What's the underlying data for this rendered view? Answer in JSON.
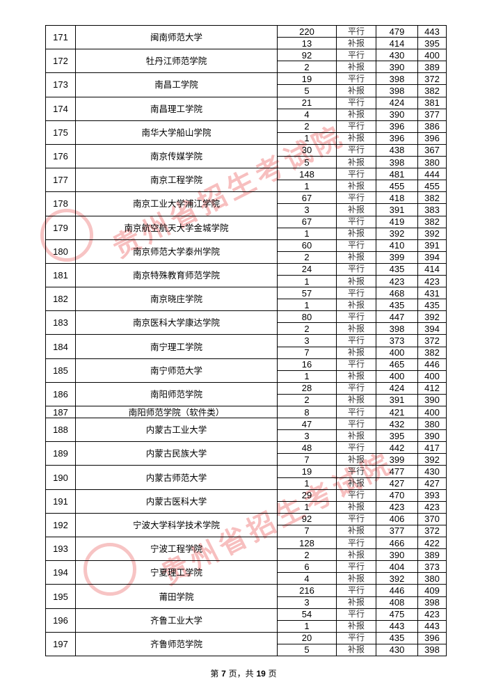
{
  "watermark": "贵州省招生考试院",
  "schools": [
    {
      "no": "171",
      "name": "闽南师范大学",
      "rows": [
        [
          "220",
          "平行",
          "479",
          "443"
        ],
        [
          "13",
          "补报",
          "414",
          "395"
        ]
      ]
    },
    {
      "no": "172",
      "name": "牡丹江师范学院",
      "rows": [
        [
          "92",
          "平行",
          "430",
          "400"
        ],
        [
          "2",
          "补报",
          "390",
          "389"
        ]
      ]
    },
    {
      "no": "173",
      "name": "南昌工学院",
      "rows": [
        [
          "19",
          "平行",
          "398",
          "372"
        ],
        [
          "5",
          "补报",
          "398",
          "382"
        ]
      ]
    },
    {
      "no": "174",
      "name": "南昌理工学院",
      "rows": [
        [
          "21",
          "平行",
          "424",
          "381"
        ],
        [
          "4",
          "补报",
          "390",
          "377"
        ]
      ]
    },
    {
      "no": "175",
      "name": "南华大学船山学院",
      "rows": [
        [
          "2",
          "平行",
          "396",
          "386"
        ],
        [
          "1",
          "补报",
          "396",
          "396"
        ]
      ]
    },
    {
      "no": "176",
      "name": "南京传媒学院",
      "rows": [
        [
          "30",
          "平行",
          "438",
          "367"
        ],
        [
          "5",
          "补报",
          "398",
          "380"
        ]
      ]
    },
    {
      "no": "177",
      "name": "南京工程学院",
      "rows": [
        [
          "148",
          "平行",
          "481",
          "444"
        ],
        [
          "1",
          "补报",
          "455",
          "455"
        ]
      ]
    },
    {
      "no": "178",
      "name": "南京工业大学浦江学院",
      "rows": [
        [
          "67",
          "平行",
          "418",
          "382"
        ],
        [
          "3",
          "补报",
          "391",
          "383"
        ]
      ]
    },
    {
      "no": "179",
      "name": "南京航空航天大学金城学院",
      "rows": [
        [
          "67",
          "平行",
          "419",
          "382"
        ],
        [
          "1",
          "补报",
          "392",
          "392"
        ]
      ]
    },
    {
      "no": "180",
      "name": "南京师范大学泰州学院",
      "rows": [
        [
          "60",
          "平行",
          "410",
          "391"
        ],
        [
          "2",
          "补报",
          "399",
          "394"
        ]
      ]
    },
    {
      "no": "181",
      "name": "南京特殊教育师范学院",
      "rows": [
        [
          "24",
          "平行",
          "435",
          "414"
        ],
        [
          "1",
          "补报",
          "423",
          "423"
        ]
      ]
    },
    {
      "no": "182",
      "name": "南京晓庄学院",
      "rows": [
        [
          "57",
          "平行",
          "468",
          "431"
        ],
        [
          "1",
          "补报",
          "435",
          "435"
        ]
      ]
    },
    {
      "no": "183",
      "name": "南京医科大学康达学院",
      "rows": [
        [
          "80",
          "平行",
          "447",
          "392"
        ],
        [
          "2",
          "补报",
          "398",
          "394"
        ]
      ]
    },
    {
      "no": "184",
      "name": "南宁理工学院",
      "rows": [
        [
          "3",
          "平行",
          "373",
          "372"
        ],
        [
          "7",
          "补报",
          "400",
          "382"
        ]
      ]
    },
    {
      "no": "185",
      "name": "南宁师范大学",
      "rows": [
        [
          "16",
          "平行",
          "465",
          "446"
        ],
        [
          "1",
          "补报",
          "400",
          "400"
        ]
      ]
    },
    {
      "no": "186",
      "name": "南阳师范学院",
      "rows": [
        [
          "28",
          "平行",
          "424",
          "412"
        ],
        [
          "2",
          "补报",
          "391",
          "390"
        ]
      ]
    },
    {
      "no": "187",
      "name": "南阳师范学院（软件类）",
      "rows": [
        [
          "8",
          "平行",
          "421",
          "400"
        ]
      ]
    },
    {
      "no": "188",
      "name": "内蒙古工业大学",
      "rows": [
        [
          "47",
          "平行",
          "432",
          "380"
        ],
        [
          "3",
          "补报",
          "395",
          "390"
        ]
      ]
    },
    {
      "no": "189",
      "name": "内蒙古民族大学",
      "rows": [
        [
          "48",
          "平行",
          "442",
          "417"
        ],
        [
          "7",
          "补报",
          "399",
          "392"
        ]
      ]
    },
    {
      "no": "190",
      "name": "内蒙古师范大学",
      "rows": [
        [
          "19",
          "平行",
          "477",
          "430"
        ],
        [
          "1",
          "补报",
          "427",
          "427"
        ]
      ]
    },
    {
      "no": "191",
      "name": "内蒙古医科大学",
      "rows": [
        [
          "29",
          "平行",
          "470",
          "393"
        ],
        [
          "1",
          "补报",
          "423",
          "423"
        ]
      ]
    },
    {
      "no": "192",
      "name": "宁波大学科学技术学院",
      "rows": [
        [
          "92",
          "平行",
          "406",
          "370"
        ],
        [
          "7",
          "补报",
          "377",
          "372"
        ]
      ]
    },
    {
      "no": "193",
      "name": "宁波工程学院",
      "rows": [
        [
          "128",
          "平行",
          "466",
          "422"
        ],
        [
          "2",
          "补报",
          "390",
          "389"
        ]
      ]
    },
    {
      "no": "194",
      "name": "宁夏理工学院",
      "rows": [
        [
          "6",
          "平行",
          "404",
          "373"
        ],
        [
          "4",
          "补报",
          "392",
          "380"
        ]
      ]
    },
    {
      "no": "195",
      "name": "莆田学院",
      "rows": [
        [
          "216",
          "平行",
          "446",
          "409"
        ],
        [
          "3",
          "补报",
          "408",
          "398"
        ]
      ]
    },
    {
      "no": "196",
      "name": "齐鲁工业大学",
      "rows": [
        [
          "54",
          "平行",
          "475",
          "423"
        ],
        [
          "1",
          "补报",
          "443",
          "443"
        ]
      ]
    },
    {
      "no": "197",
      "name": "齐鲁师范学院",
      "rows": [
        [
          "20",
          "平行",
          "435",
          "396"
        ],
        [
          "5",
          "补报",
          "430",
          "398"
        ]
      ]
    }
  ],
  "footer": {
    "prefix": "第 ",
    "page": "7",
    "middle": " 页，共 ",
    "total": "19",
    "suffix": " 页"
  }
}
